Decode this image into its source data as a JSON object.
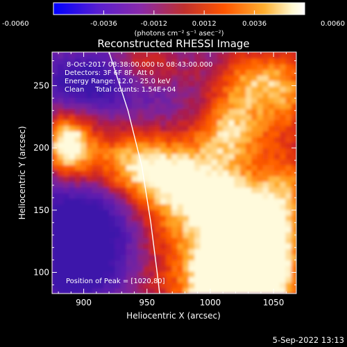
{
  "chart_data": {
    "type": "heatmap",
    "title": "Reconstructed RHESSI Image",
    "xlabel": "Heliocentric X (arcsec)",
    "ylabel": "Heliocentric Y (arcsec)",
    "xlim": [
      875,
      1068
    ],
    "ylim": [
      83,
      277
    ],
    "xticks": [
      900,
      950,
      1000,
      1050
    ],
    "yticks": [
      100,
      150,
      200,
      250
    ],
    "colorbar": {
      "min": -0.006,
      "max": 0.006,
      "ticks": [
        "-0.0060",
        "-0.0036",
        "-0.0012",
        "0.0012",
        "0.0036",
        "0.0060"
      ],
      "label": "(photons cm⁻² s⁻¹ asec⁻²)",
      "colormap": [
        "#0000ff",
        "#5a1fd0",
        "#8a2aa8",
        "#c0302e",
        "#ff5500",
        "#ffb030",
        "#fff8d0",
        "#ffffff"
      ]
    },
    "info_lines": [
      "8-Oct-2017 08:38:00.000 to 08:43:00.000",
      "Detectors: 3F 6F 8F, Att 0",
      "Energy Range: 12.0 - 25.0 keV",
      "Clean     Total counts: 1.54E+04"
    ],
    "annotation": "Position of Peak = [1020,80]",
    "limb_curve": [
      [
        920,
        277
      ],
      [
        935,
        230
      ],
      [
        946,
        185
      ],
      [
        953,
        140
      ],
      [
        958,
        100
      ],
      [
        960,
        83
      ]
    ]
  },
  "footer": {
    "timestamp": "5-Sep-2022 13:13"
  }
}
